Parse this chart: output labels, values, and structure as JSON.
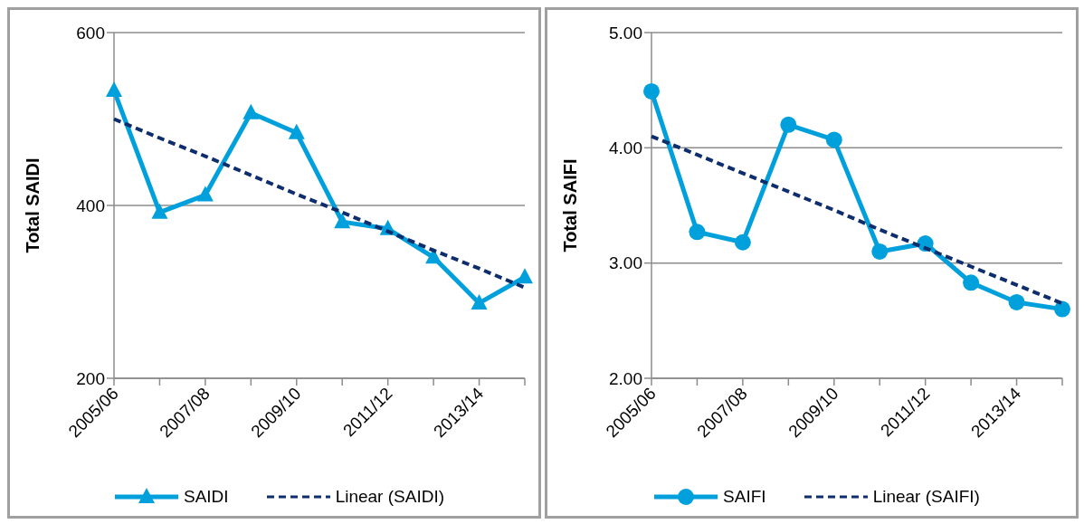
{
  "chart_data": [
    {
      "type": "line",
      "ylabel": "Total SAIDI",
      "categories": [
        "2005/06",
        null,
        "2007/08",
        null,
        "2009/10",
        null,
        "2011/12",
        null,
        "2013/14",
        null
      ],
      "ylim": [
        200,
        600
      ],
      "yticks": [
        200,
        400,
        600
      ],
      "grid": "y",
      "legend": "bottom",
      "series": [
        {
          "name": "SAIDI",
          "color": "#00a0dc",
          "marker": "triangle",
          "line_style": "solid",
          "values": [
            533,
            392,
            412,
            507,
            484,
            381,
            373,
            340,
            287,
            317
          ]
        },
        {
          "name": "Linear (SAIDI)",
          "color": "#0d2d6c",
          "marker": "none",
          "line_style": "dashed",
          "values": [
            500,
            478,
            457,
            435,
            413,
            392,
            370,
            348,
            327,
            305
          ]
        }
      ]
    },
    {
      "type": "line",
      "ylabel": "Total SAIFI",
      "categories": [
        "2005/06",
        null,
        "2007/08",
        null,
        "2009/10",
        null,
        "2011/12",
        null,
        "2013/14",
        null
      ],
      "ylim": [
        2,
        5
      ],
      "yticks": [
        {
          "value": 2,
          "label": "2.00"
        },
        {
          "value": 3,
          "label": "3.00"
        },
        {
          "value": 4,
          "label": "4.00"
        },
        {
          "value": 5,
          "label": "5.00"
        }
      ],
      "grid": "y",
      "legend": "bottom",
      "series": [
        {
          "name": "SAIFI",
          "color": "#00a0dc",
          "marker": "circle",
          "line_style": "solid",
          "values": [
            4.49,
            3.27,
            3.18,
            4.2,
            4.07,
            3.1,
            3.17,
            2.83,
            2.66,
            2.6
          ]
        },
        {
          "name": "Linear (SAIFI)",
          "color": "#0d2d6c",
          "marker": "none",
          "line_style": "dashed",
          "values": [
            4.1,
            3.94,
            3.78,
            3.62,
            3.46,
            3.29,
            3.13,
            2.97,
            2.81,
            2.65
          ]
        }
      ]
    }
  ]
}
